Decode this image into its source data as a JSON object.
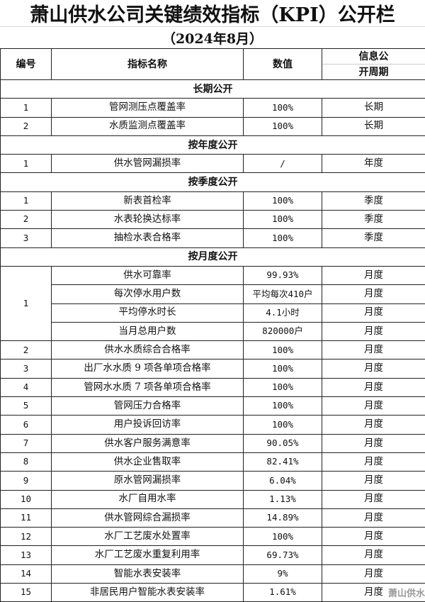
{
  "title": "萧山供水公司关键绩效指标（KPI）公开栏",
  "subtitle": "（2024年8月）",
  "headers": {
    "no": "编号",
    "name": "指标名称",
    "value": "数值",
    "period_line1": "信息公",
    "period_line2": "开周期"
  },
  "sections": [
    {
      "label": "长期公开",
      "rows": [
        {
          "no": "1",
          "items": [
            {
              "name": "管网测压点覆盖率",
              "value": "100%",
              "period": "长期"
            }
          ]
        },
        {
          "no": "2",
          "items": [
            {
              "name": "水质监测点覆盖率",
              "value": "100%",
              "period": "长期"
            }
          ]
        }
      ]
    },
    {
      "label": "按年度公开",
      "rows": [
        {
          "no": "1",
          "items": [
            {
              "name": "供水管网漏损率",
              "value": "/",
              "period": "年度"
            }
          ]
        }
      ]
    },
    {
      "label": "按季度公开",
      "rows": [
        {
          "no": "1",
          "items": [
            {
              "name": "新表首检率",
              "value": "100%",
              "period": "季度"
            }
          ]
        },
        {
          "no": "2",
          "items": [
            {
              "name": "水表轮换达标率",
              "value": "100%",
              "period": "季度"
            }
          ]
        },
        {
          "no": "3",
          "items": [
            {
              "name": "抽检水表合格率",
              "value": "100%",
              "period": "季度"
            }
          ]
        }
      ]
    },
    {
      "label": "按月度公开",
      "rows": [
        {
          "no": "1",
          "items": [
            {
              "name": "供水可靠率",
              "value": "99.93%",
              "period": "月度"
            },
            {
              "name": "每次停水用户数",
              "value": "平均每次410户",
              "period": "月度"
            },
            {
              "name": "平均停水时长",
              "value": "4.1小时",
              "period": "月度"
            },
            {
              "name": "当月总用户数",
              "value": "820000户",
              "period": "月度"
            }
          ]
        },
        {
          "no": "2",
          "items": [
            {
              "name": "供水水质综合合格率",
              "value": "100%",
              "period": "月度"
            }
          ]
        },
        {
          "no": "3",
          "items": [
            {
              "name": "出厂水水质 9 项各单项合格率",
              "value": "100%",
              "period": "月度"
            }
          ]
        },
        {
          "no": "4",
          "items": [
            {
              "name": "管网水水质 7 项各单项合格率",
              "value": "100%",
              "period": "月度"
            }
          ]
        },
        {
          "no": "5",
          "items": [
            {
              "name": "管网压力合格率",
              "value": "100%",
              "period": "月度"
            }
          ]
        },
        {
          "no": "6",
          "items": [
            {
              "name": "用户投诉回访率",
              "value": "100%",
              "period": "月度"
            }
          ]
        },
        {
          "no": "7",
          "items": [
            {
              "name": "供水客户服务满意率",
              "value": "90.05%",
              "period": "月度"
            }
          ]
        },
        {
          "no": "8",
          "items": [
            {
              "name": "供水企业售取率",
              "value": "82.41%",
              "period": "月度"
            }
          ]
        },
        {
          "no": "9",
          "items": [
            {
              "name": "原水管网漏损率",
              "value": "6.04%",
              "period": "月度"
            }
          ]
        },
        {
          "no": "10",
          "items": [
            {
              "name": "水厂自用水率",
              "value": "1.13%",
              "period": "月度"
            }
          ]
        },
        {
          "no": "11",
          "items": [
            {
              "name": "供水管网综合漏损率",
              "value": "14.89%",
              "period": "月度"
            }
          ]
        },
        {
          "no": "12",
          "items": [
            {
              "name": "水厂工艺废水处置率",
              "value": "100%",
              "period": "月度"
            }
          ]
        },
        {
          "no": "13",
          "items": [
            {
              "name": "水厂工艺废水重复利用率",
              "value": "69.73%",
              "period": "月度"
            }
          ]
        },
        {
          "no": "14",
          "items": [
            {
              "name": "智能水表安装率",
              "value": "9%",
              "period": "月度"
            }
          ]
        },
        {
          "no": "15",
          "items": [
            {
              "name": "非居民用户智能水表安装率",
              "value": "1.61%",
              "period": "月度"
            }
          ]
        }
      ]
    }
  ],
  "watermark": "萧山供水"
}
